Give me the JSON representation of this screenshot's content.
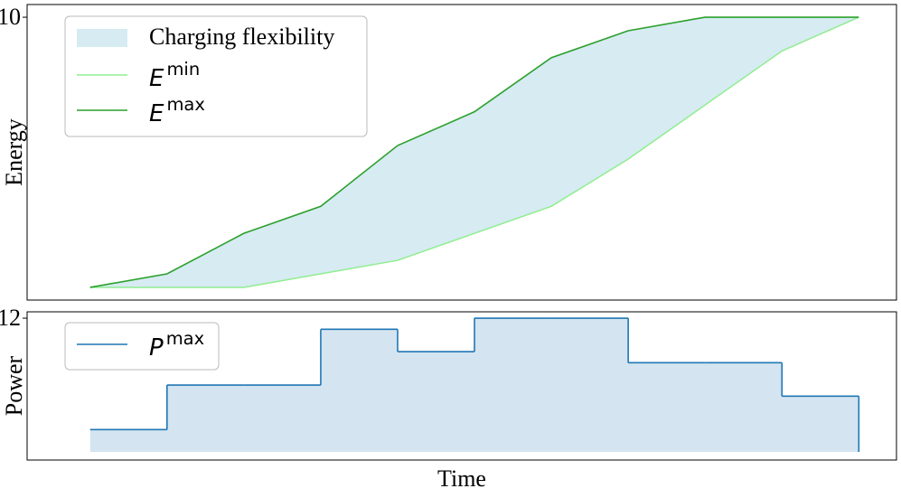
{
  "chart_data": [
    {
      "type": "area-range",
      "ylabel": "Energy",
      "x": [
        0,
        1,
        2,
        3,
        4,
        5,
        6,
        7,
        8,
        9,
        10
      ],
      "fill_label": "Charging flexibility",
      "fill_color": "#add8e6",
      "series": [
        {
          "name": "E",
          "name_sup": "min",
          "color": "#90ee90",
          "values": [
            0,
            0,
            0,
            0.5,
            1,
            2,
            3,
            4.75,
            6.75,
            8.75,
            10
          ]
        },
        {
          "name": "E",
          "name_sup": "max",
          "color": "#2ca02c",
          "values": [
            0,
            0.5,
            2,
            3,
            5.25,
            6.5,
            8.5,
            9.5,
            10,
            10,
            10
          ]
        }
      ],
      "xlim": [
        -0.82,
        10.49
      ],
      "ylim": [
        -0.47,
        10.47
      ],
      "yticks": [
        10
      ],
      "legend": "upper left"
    },
    {
      "type": "step",
      "ylabel": "Power",
      "xlabel": "Time",
      "x": [
        0,
        1,
        2,
        3,
        4,
        5,
        6,
        7,
        8,
        9,
        10
      ],
      "fill_color": "#b0cde6",
      "series": [
        {
          "name": "P",
          "name_sup": "max",
          "color": "#1f77b4",
          "values": [
            2,
            6,
            6,
            11,
            9,
            12,
            12,
            8,
            8,
            5,
            5
          ]
        }
      ],
      "xlim": [
        -0.82,
        10.49
      ],
      "ylim": [
        -0.73,
        12.57
      ],
      "yticks": [
        12
      ],
      "legend": "upper left"
    }
  ]
}
